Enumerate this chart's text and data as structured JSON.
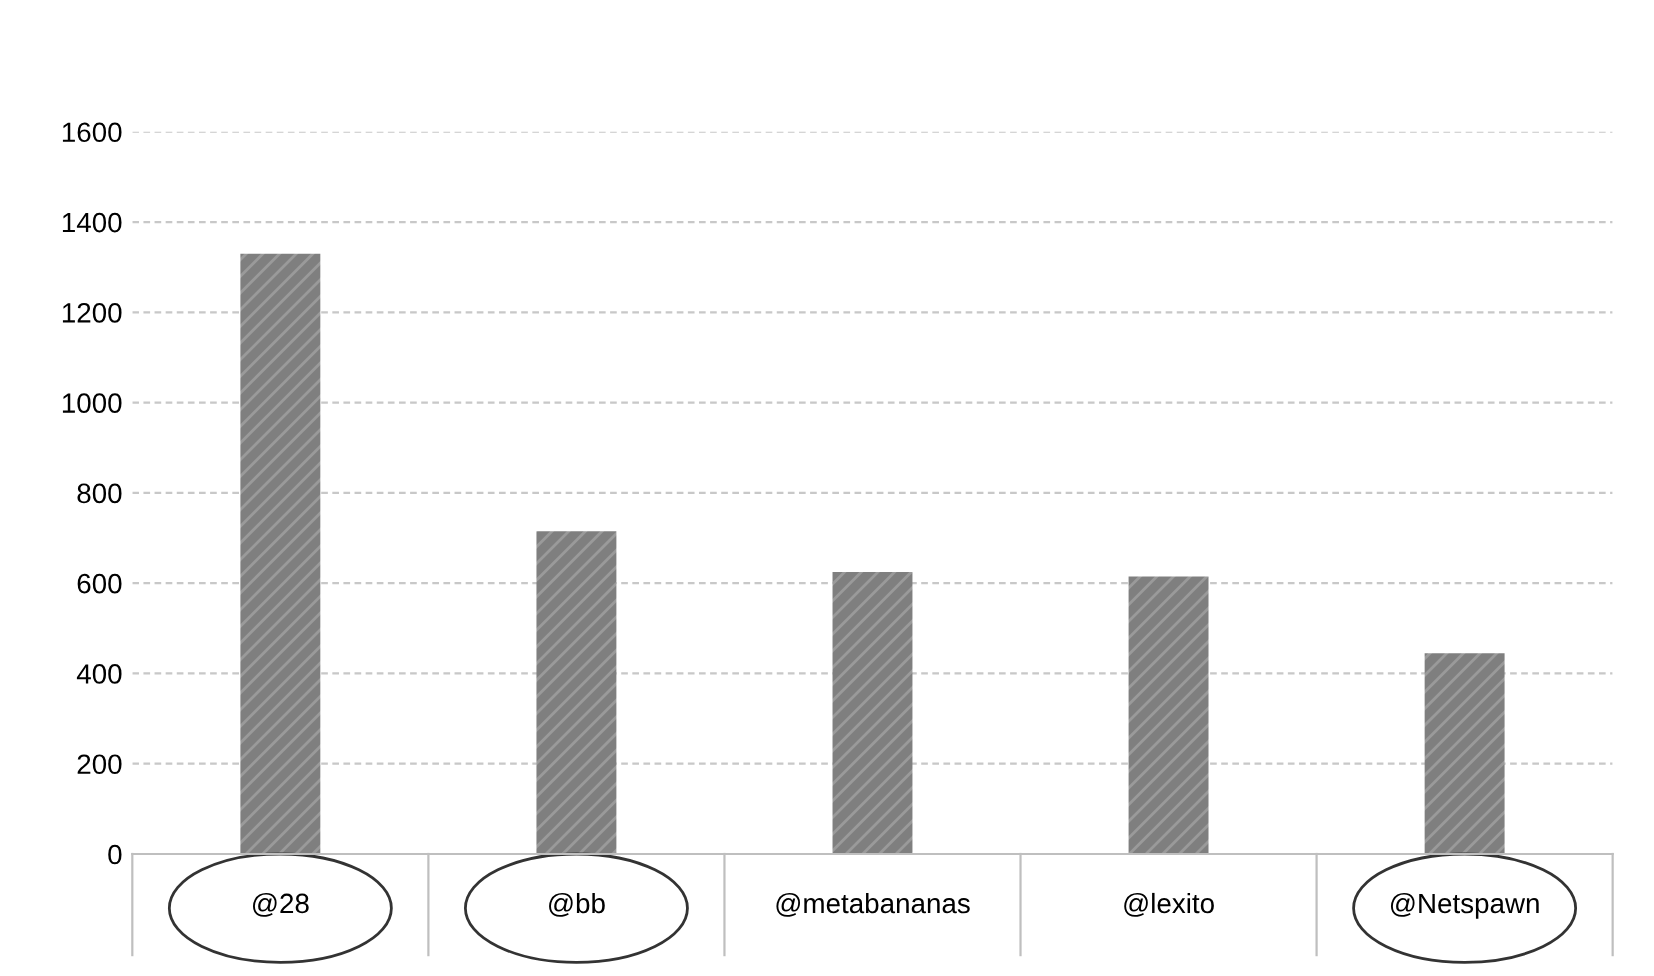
{
  "chart_data": {
    "type": "bar",
    "categories": [
      "@28",
      "@bb",
      "@metabananas",
      "@lexito",
      "@Netspawn"
    ],
    "values": [
      1330,
      715,
      625,
      615,
      445
    ],
    "color": "#7f7f7f",
    "ylim": [
      0,
      1600
    ],
    "yticks": [
      0,
      200,
      400,
      600,
      800,
      1000,
      1200,
      1400,
      1600
    ],
    "grid": "y"
  }
}
